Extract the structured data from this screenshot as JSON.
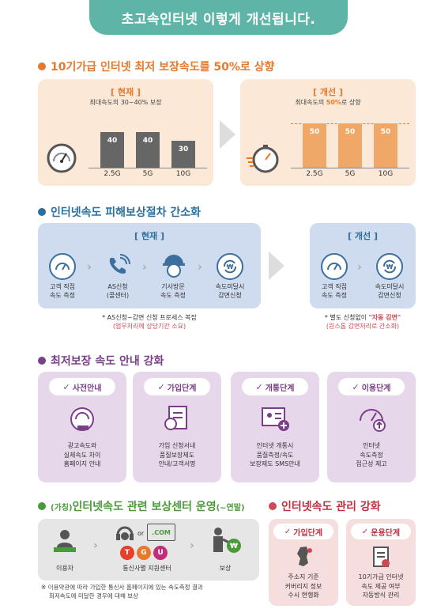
{
  "header": {
    "title": "초고속인터넷 이렇게 개선됩니다."
  },
  "section1": {
    "title": "10기가급 인터넷 최저 보장속도를 50%로 상향",
    "current": {
      "label": "[ 현재 ]",
      "subtitle": "최대속도의 30~40% 보장"
    },
    "improved": {
      "label": "[ 개선 ]",
      "subtitle_pre": "최대속도의 ",
      "subtitle_hl": "50%",
      "subtitle_post": "로 상향"
    }
  },
  "chart_data": [
    {
      "type": "bar",
      "categories": [
        "2.5G",
        "5G",
        "10G"
      ],
      "values": [
        40,
        40,
        30
      ],
      "title": "[ 현재 ]"
    },
    {
      "type": "bar",
      "categories": [
        "2.5G",
        "5G",
        "10G"
      ],
      "values": [
        50,
        50,
        50
      ],
      "title": "[ 개선 ]"
    }
  ],
  "section2": {
    "title": "인터넷속도 피해보상절차 간소화",
    "current": {
      "label": "[ 현재 ]",
      "steps": [
        {
          "l1": "고객 직접",
          "l2": "속도 측정"
        },
        {
          "l1": "AS신청",
          "l2": "(콜센터)"
        },
        {
          "l1": "기사방문",
          "l2": "속도 측정"
        },
        {
          "l1": "속도미달시",
          "l2": "감면신청"
        }
      ],
      "note1": "* AS신청~감면 신청 프로세스 복잡",
      "note2": "(업무처리에 상당기간 소요)"
    },
    "improved": {
      "label": "[ 개선 ]",
      "steps": [
        {
          "l1": "고객 직접",
          "l2": "속도 측정"
        },
        {
          "l1": "속도미달시",
          "l2": "감면신청"
        }
      ],
      "note1_pre": "* 별도 신청없이 ",
      "note1_hl": "\"자동 감면\"",
      "note2": "(원스톱 감면처리로 간소화)"
    }
  },
  "section3": {
    "title": "최저보장 속도 안내 강화",
    "cards": [
      {
        "head": "사전안내",
        "lines": [
          "광고속도와",
          "실제속도 차이",
          "홈페이지 안내"
        ]
      },
      {
        "head": "가입단계",
        "lines": [
          "가입 신청서내",
          "품질보장제도",
          "안내/고객서명"
        ]
      },
      {
        "head": "개통단계",
        "lines": [
          "인터넷 개통시",
          "품질측정/속도",
          "보장제도 SMS안내"
        ]
      },
      {
        "head": "이용단계",
        "lines": [
          "인터넷",
          "속도측정",
          "접근성 제고"
        ]
      }
    ]
  },
  "section4": {
    "title_prefix": "(가칭)",
    "title_main": "인터넷속도 관련 보상센터 운영",
    "title_suffix": "(~연말)",
    "com_label": ".COM",
    "or_label": "or",
    "carriers": [
      "T",
      "G",
      "U"
    ],
    "labels": [
      "이용자",
      "통신사별 지원센터",
      "보상"
    ],
    "note1": "※ 이용약관에 따라 가입한 통신사 홈페이지에 있는 속도측정 결과",
    "note2": "최저속도에 미달한 경우에 대해 보상"
  },
  "section5": {
    "title": "인터넷속도 관리 강화",
    "cards": [
      {
        "head": "가입단계",
        "lines": [
          "주소지 기준",
          "커버리지 정보",
          "수시 현행화"
        ]
      },
      {
        "head": "운용단계",
        "lines": [
          "10기가급 인터넷",
          "속도 제공 여부",
          "자동방식 관리"
        ]
      }
    ]
  },
  "colors": {
    "teal": "#5fb4a8",
    "orange": "#e8782a",
    "blue": "#3b6f9e",
    "purple": "#7a3e8a",
    "green": "#4a9a3a",
    "pink": "#d04858"
  }
}
